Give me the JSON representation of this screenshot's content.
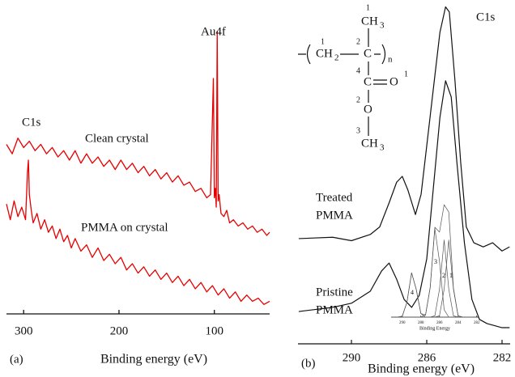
{
  "chart_data": [
    {
      "type": "line",
      "panel_label": "(a)",
      "xlabel": "Binding energy (eV)",
      "xlim": [
        318,
        42
      ],
      "ylim": [
        0,
        100
      ],
      "xticks": [
        300,
        200,
        100
      ],
      "color": "#e60000",
      "annotations": [
        "C1s",
        "Clean crystal",
        "Au4f",
        "PMMA on crystal"
      ],
      "series": [
        {
          "x": [
            318,
            312,
            306,
            300,
            294,
            288,
            282,
            276,
            270,
            264,
            258,
            252,
            246,
            240,
            234,
            228,
            222,
            216,
            210,
            204,
            198,
            192,
            186,
            180,
            174,
            168,
            162,
            156,
            150,
            144,
            138,
            132,
            126,
            120,
            114,
            108,
            104,
            101,
            100,
            99,
            98,
            97,
            96,
            95,
            93,
            90,
            87,
            84,
            80,
            75,
            70,
            65,
            60,
            55,
            50,
            45,
            42
          ],
          "values": [
            54,
            51,
            56,
            53,
            55,
            52,
            54,
            51,
            53,
            50,
            52,
            49,
            52,
            48,
            51,
            48,
            50,
            47,
            49,
            46,
            49,
            46,
            48,
            45,
            47,
            44,
            46,
            43,
            45,
            42,
            44,
            41,
            42,
            39,
            40,
            37,
            38,
            75,
            37,
            40,
            34,
            90,
            36,
            38,
            32,
            31,
            33,
            29,
            30,
            28,
            29,
            27,
            28,
            26,
            27,
            25,
            26
          ]
        },
        {
          "x": [
            318,
            314,
            310,
            306,
            302,
            298,
            296,
            295,
            294,
            292,
            290,
            286,
            282,
            278,
            274,
            270,
            266,
            262,
            258,
            254,
            250,
            246,
            240,
            234,
            228,
            222,
            216,
            210,
            204,
            198,
            192,
            186,
            180,
            174,
            168,
            162,
            156,
            150,
            144,
            138,
            132,
            126,
            120,
            114,
            108,
            102,
            96,
            90,
            84,
            78,
            72,
            66,
            60,
            54,
            48,
            42
          ],
          "values": [
            35,
            30,
            36,
            31,
            34,
            30,
            45,
            49,
            38,
            33,
            29,
            32,
            27,
            30,
            26,
            28,
            24,
            27,
            23,
            25,
            21,
            24,
            20,
            22,
            18,
            21,
            17,
            19,
            16,
            18,
            14,
            16,
            13,
            15,
            12,
            14,
            11,
            13,
            10,
            12,
            9,
            11,
            8,
            10,
            7,
            9,
            6,
            8,
            5,
            7,
            4,
            6,
            4,
            5,
            3,
            4
          ]
        }
      ]
    },
    {
      "type": "line",
      "panel_label": "(b)",
      "xlabel": "Binding energy (eV)",
      "xlim": [
        292.84,
        281.57
      ],
      "ylim": [
        0,
        100
      ],
      "xticks": [
        290,
        286,
        282
      ],
      "color": "#111111",
      "annotations": [
        "C1s",
        [
          "Treated",
          "PMMA"
        ],
        [
          "Pristine",
          "PMMA"
        ]
      ],
      "structure": {
        "methyl_top": [
          "CH",
          "3"
        ],
        "chain": [
          "CH",
          "2",
          "C",
          "n"
        ],
        "carbonyl": [
          "C",
          "O"
        ],
        "ester_o": "O",
        "methyl_ester": [
          "CH",
          "3"
        ],
        "locants": [
          "1",
          "1",
          "2",
          "4",
          "1",
          "2",
          "3"
        ]
      },
      "series": [
        {
          "x": [
            292.8,
            291,
            290,
            289,
            288.5,
            288,
            287.6,
            287.3,
            287,
            286.6,
            286.3,
            286,
            285.6,
            285.3,
            285,
            284.8,
            284.5,
            284.2,
            283.9,
            283.5,
            283,
            282.5,
            282,
            281.6
          ],
          "values": [
            30.6,
            31,
            30,
            31.8,
            34,
            41,
            47,
            48.7,
            44.7,
            37.6,
            43.5,
            57.6,
            76.5,
            90.6,
            98,
            96.5,
            76.5,
            53,
            34,
            29.4,
            28.2,
            29.4,
            27,
            28.2
          ]
        },
        {
          "x": [
            292.8,
            291,
            290,
            289,
            288.4,
            288,
            287.6,
            287.2,
            286.8,
            286.4,
            286,
            285.6,
            285.3,
            285,
            284.7,
            284.4,
            284,
            283.6,
            283.2,
            282.8,
            282,
            281.6
          ],
          "values": [
            9.4,
            10.6,
            11.8,
            15.3,
            21.2,
            23.5,
            18.8,
            12.9,
            10.6,
            14.1,
            24.7,
            48.2,
            65.9,
            76.5,
            71.8,
            52.9,
            29.4,
            12.9,
            7.1,
            5.9,
            4.7,
            4.7
          ]
        }
      ]
    },
    {
      "type": "line",
      "xlabel": "Binding Energy",
      "xlim": [
        291.2,
        281.8
      ],
      "ylim": [
        0,
        70
      ],
      "xticks": [
        290,
        288,
        286,
        284,
        282
      ],
      "color": "#555555",
      "annotations": [
        "4",
        "3",
        "2",
        "1"
      ],
      "x": [
        290.5,
        290,
        289.5,
        289,
        288.5,
        288,
        287.5,
        287,
        286.5,
        286,
        285.5,
        285,
        284.5,
        284,
        283.5,
        283,
        282.5
      ],
      "series": [
        {
          "values": [
            0,
            0.6,
            9,
            27,
            17,
            2.2,
            0,
            0,
            0,
            0,
            0,
            0,
            0,
            0,
            0,
            0,
            0
          ]
        },
        {
          "values": [
            0,
            0,
            0,
            0,
            0,
            0,
            1.3,
            18,
            54,
            34,
            4.5,
            0,
            0,
            0,
            0,
            0,
            0
          ]
        },
        {
          "values": [
            0,
            0,
            0,
            0,
            0,
            0,
            0,
            0,
            0.8,
            17,
            47,
            17,
            0.8,
            0,
            0,
            0,
            0
          ]
        },
        {
          "values": [
            0,
            0,
            0,
            0,
            0,
            0,
            0,
            0,
            0,
            0.8,
            17,
            47,
            17,
            0.8,
            0,
            0,
            0
          ]
        },
        {
          "values": [
            0,
            0.6,
            9,
            27,
            17,
            2.2,
            1.3,
            18,
            54.8,
            51.8,
            68.5,
            64,
            17.8,
            0.8,
            0,
            0,
            0
          ]
        }
      ]
    }
  ]
}
